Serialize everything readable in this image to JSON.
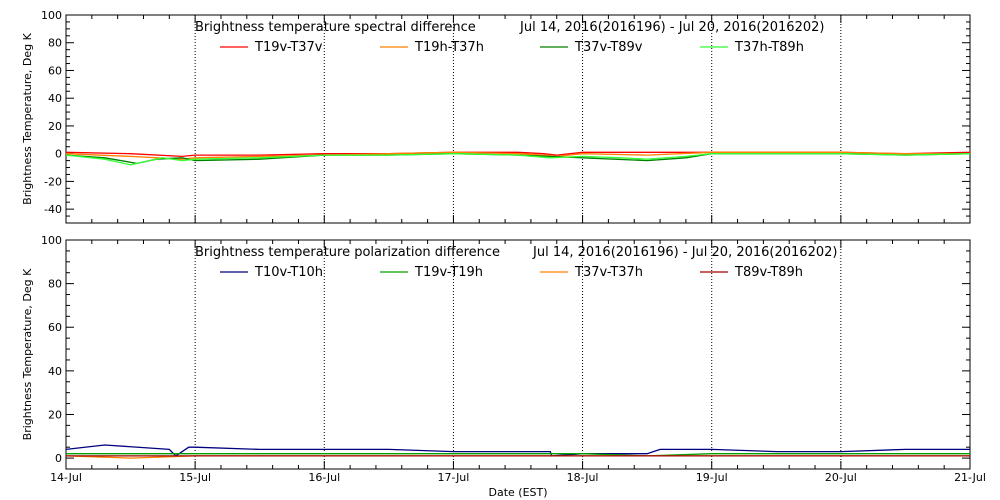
{
  "chart_data": [
    {
      "type": "line",
      "title": "Brightness temperature spectral difference",
      "date_range": "Jul 14, 2016(2016196) - Jul 20, 2016(2016202)",
      "ylabel": "Brightness Temperature, Deg K",
      "xlabel": "",
      "ylim": [
        -50,
        100
      ],
      "yticks": [
        "-40",
        "-20",
        "0",
        "20",
        "40",
        "60",
        "80",
        "100"
      ],
      "xlim": [
        0,
        7
      ],
      "xticks": [],
      "grid": "vertical dotted at day boundaries",
      "legend_position": "top",
      "series": [
        {
          "name": "T19v-T37v",
          "color": "#ff0000",
          "x": [
            0,
            0.5,
            0.9,
            1.0,
            1.5,
            2.0,
            2.5,
            3.0,
            3.5,
            3.7,
            3.8,
            4.0,
            4.5,
            5.0,
            5.5,
            6.0,
            6.5,
            7.0
          ],
          "y": [
            1,
            0,
            -2,
            -1,
            -1,
            0,
            0,
            1,
            1,
            0,
            -1,
            1,
            1,
            1,
            1,
            1,
            0,
            1
          ]
        },
        {
          "name": "T19h-T37h",
          "color": "#ff7f00",
          "x": [
            0,
            0.5,
            0.9,
            1.0,
            1.5,
            2.0,
            2.5,
            3.0,
            3.5,
            3.7,
            3.8,
            4.0,
            4.5,
            5.0,
            5.5,
            6.0,
            6.5,
            7.0
          ],
          "y": [
            0,
            -2,
            -4,
            -3,
            -2,
            -1,
            0,
            1,
            0,
            -1,
            -2,
            0,
            -1,
            1,
            1,
            1,
            0,
            0
          ]
        },
        {
          "name": "T37v-T89v",
          "color": "#008000",
          "x": [
            0,
            0.3,
            0.55,
            0.7,
            0.9,
            1.0,
            1.5,
            2.0,
            2.5,
            3.0,
            3.5,
            3.75,
            4.0,
            4.5,
            4.8,
            5.0,
            5.5,
            6.0,
            6.5,
            7.0
          ],
          "y": [
            -1,
            -3,
            -7,
            -4,
            -3,
            -5,
            -4,
            -1,
            -1,
            0,
            -1,
            -2,
            -3,
            -5,
            -3,
            0,
            0,
            0,
            -1,
            0
          ]
        },
        {
          "name": "T37h-T89h",
          "color": "#33ff33",
          "x": [
            0,
            0.3,
            0.5,
            0.6,
            0.75,
            0.9,
            1.0,
            1.5,
            2.0,
            2.5,
            3.0,
            3.5,
            3.75,
            4.0,
            4.3,
            4.5,
            4.8,
            5.0,
            5.5,
            6.0,
            6.5,
            7.0
          ],
          "y": [
            -1,
            -4,
            -8,
            -6,
            -3,
            -5,
            -4,
            -3,
            -1,
            -1,
            0,
            -1,
            -3,
            -2,
            -3,
            -4,
            -2,
            0,
            0,
            0,
            -1,
            0
          ]
        }
      ]
    },
    {
      "type": "line",
      "title": "Brightness temperature polarization difference",
      "date_range": "Jul 14, 2016(2016196) - Jul 20, 2016(2016202)",
      "ylabel": "Brightness Temperature, Deg K",
      "xlabel": "Date (EST)",
      "ylim": [
        -5,
        100
      ],
      "yticks": [
        "0",
        "20",
        "40",
        "60",
        "80",
        "100"
      ],
      "xlim": [
        0,
        7
      ],
      "xticks": [
        "14-Jul",
        "15-Jul",
        "16-Jul",
        "17-Jul",
        "18-Jul",
        "19-Jul",
        "20-Jul",
        "21-Jul"
      ],
      "grid": "vertical dotted at day boundaries",
      "legend_position": "top",
      "series": [
        {
          "name": "T10v-T10h",
          "color": "#000080",
          "x": [
            0,
            0.3,
            0.8,
            0.85,
            0.95,
            1.0,
            1.5,
            2.0,
            2.5,
            3.0,
            3.5,
            3.75,
            3.76,
            4.0,
            4.5,
            4.6,
            5.0,
            5.5,
            6.0,
            6.5,
            7.0
          ],
          "y": [
            4,
            6,
            4,
            1,
            5,
            5,
            4,
            4,
            4,
            3,
            3,
            3,
            1,
            2,
            2,
            4,
            4,
            3,
            3,
            4,
            4
          ]
        },
        {
          "name": "T19v-T19h",
          "color": "#00a000",
          "x": [
            0,
            0.5,
            1.0,
            1.5,
            2.0,
            2.5,
            3.0,
            3.5,
            4.0,
            4.5,
            5.0,
            5.5,
            6.0,
            6.5,
            7.0
          ],
          "y": [
            2,
            2,
            2,
            2,
            2,
            2,
            2,
            2,
            2,
            1,
            2,
            2,
            2,
            2,
            2
          ]
        },
        {
          "name": "T37v-T37h",
          "color": "#ff8000",
          "x": [
            0,
            0.5,
            1.0,
            1.5,
            2.0,
            2.5,
            3.0,
            3.5,
            4.0,
            4.5,
            5.0,
            5.5,
            6.0,
            6.5,
            7.0
          ],
          "y": [
            1,
            0,
            1,
            1,
            1,
            1,
            1,
            1,
            1,
            1,
            1,
            1,
            1,
            1,
            1
          ]
        },
        {
          "name": "T89v-T89h",
          "color": "#a00000",
          "x": [
            0,
            0.5,
            1.0,
            1.5,
            2.0,
            2.5,
            3.0,
            3.5,
            4.0,
            4.5,
            5.0,
            5.5,
            6.0,
            6.5,
            7.0
          ],
          "y": [
            1,
            1,
            1,
            1,
            1,
            1,
            1,
            1,
            1,
            1,
            1,
            1,
            1,
            1,
            1
          ]
        }
      ]
    }
  ]
}
